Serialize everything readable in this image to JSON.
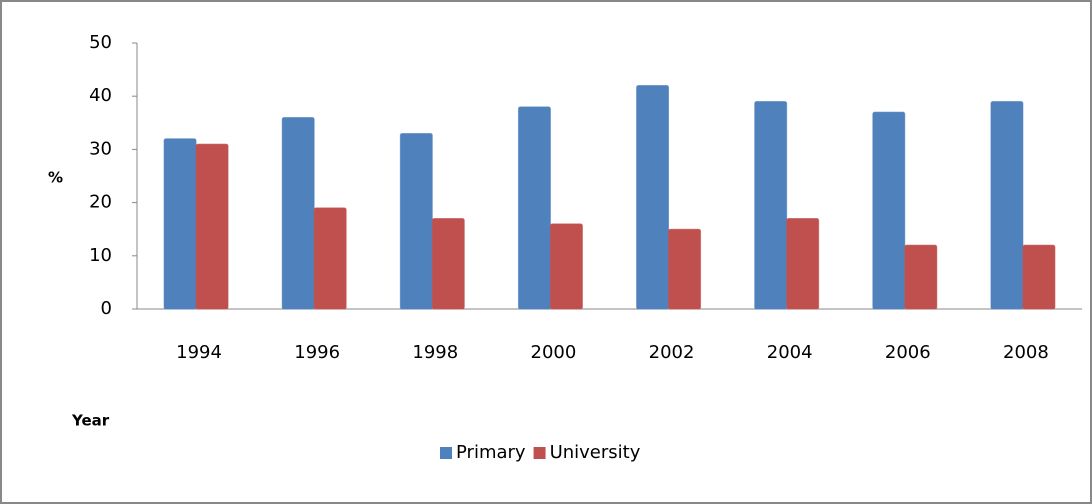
{
  "chart_data": {
    "type": "bar",
    "y_label": "%",
    "x_label": "Year",
    "categories": [
      "1994",
      "1996",
      "1998",
      "2000",
      "2002",
      "2004",
      "2006",
      "2008"
    ],
    "series": [
      {
        "name": "Primary",
        "color": "#4f81bd",
        "values": [
          32,
          36,
          33,
          38,
          42,
          39,
          37,
          39
        ]
      },
      {
        "name": "University",
        "color": "#c0504d",
        "values": [
          31,
          19,
          17,
          16,
          15,
          17,
          12,
          12
        ]
      }
    ],
    "ylim": [
      0,
      50
    ],
    "yticks": [
      0,
      10,
      20,
      30,
      40,
      50
    ],
    "grid": false,
    "legend": "bottom"
  }
}
